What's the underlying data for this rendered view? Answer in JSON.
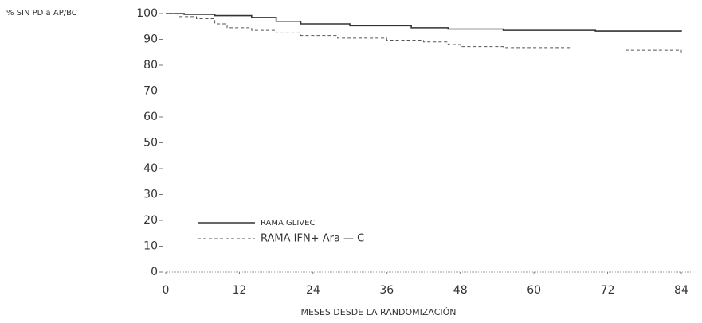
{
  "chart_data": {
    "type": "line",
    "step": true,
    "y_label": "% SIN PD a AP/BC",
    "x_label": "MESES DESDE LA RANDOMIZACIÓN",
    "xlim": [
      0,
      84
    ],
    "xticks": [
      0,
      12,
      24,
      36,
      48,
      60,
      72,
      84
    ],
    "ylim": [
      0,
      100
    ],
    "yticks": [
      0,
      10,
      20,
      30,
      40,
      50,
      60,
      70,
      80,
      90,
      100
    ],
    "series": [
      {
        "name": "RAMA GLIVEC",
        "color": "#333333",
        "dash": false,
        "x": [
          0,
          3,
          8,
          14,
          18,
          22,
          30,
          40,
          46,
          55,
          70,
          84
        ],
        "values": [
          100,
          99.7,
          99.2,
          98.5,
          97,
          96,
          95.3,
          94.5,
          94,
          93.5,
          93.2,
          93
        ]
      },
      {
        "name": "RAMA IFN+ Ara — C",
        "color": "#555555",
        "dash": true,
        "x": [
          0,
          2,
          5,
          8,
          10,
          14,
          18,
          22,
          28,
          36,
          42,
          46,
          48,
          55,
          66,
          75,
          84
        ],
        "values": [
          100,
          98.8,
          98,
          96,
          94.5,
          93.5,
          92.5,
          91.5,
          90.5,
          89.7,
          89,
          88,
          87.2,
          86.8,
          86.3,
          85.8,
          85
        ]
      }
    ]
  }
}
